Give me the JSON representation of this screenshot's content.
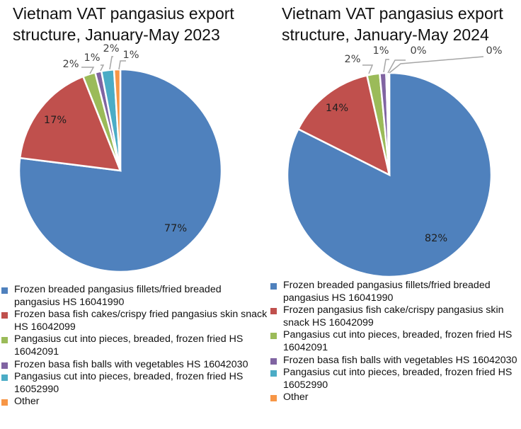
{
  "chart_data": [
    {
      "type": "pie",
      "title": "Vietnam VAT pangasius export structure, January-May 2023",
      "title_lines": [
        "Vietnam VAT pangasius export",
        "structure, January-May 2023"
      ],
      "categories": [
        "Frozen breaded pangasius fillets/fried breaded pangasius HS 16041990",
        "Frozen basa fish cakes/crispy fried pangasius skin snack HS 16042099",
        "Pangasius cut into pieces, breaded, frozen fried HS 16042091",
        "Frozen basa fish balls with vegetables HS 16042030",
        "Pangasius cut into pieces, breaded, frozen fried HS 16052990",
        "Other"
      ],
      "values": [
        77,
        17,
        2,
        1,
        2,
        1
      ],
      "data_labels": [
        "77%",
        "17%",
        "2%",
        "1%",
        "2%",
        "1%"
      ],
      "colors": [
        "#4f81bd",
        "#c0504d",
        "#9bbb59",
        "#8064a2",
        "#4bacc6",
        "#f79646"
      ],
      "legend_position": "bottom"
    },
    {
      "type": "pie",
      "title": "Vietnam VAT pangasius export structure, January-May 2024",
      "title_lines": [
        "Vietnam VAT pangasius export",
        "structure, January-May 2024"
      ],
      "categories": [
        "Frozen breaded pangasius fillets/fried breaded pangasius HS 16041990",
        "Frozen pangasius fish cake/crispy pangasius skin snack HS 16042099",
        "Pangasius cut into pieces, breaded, frozen fried HS 16042091",
        "Frozen basa fish balls with vegetables HS 16042030",
        "Pangasius cut into pieces, breaded, frozen fried HS 16052990",
        "Other"
      ],
      "values": [
        82,
        14,
        2,
        1,
        0.3,
        0.2
      ],
      "data_labels": [
        "82%",
        "14%",
        "2%",
        "1%",
        "0%",
        "0%"
      ],
      "colors": [
        "#4f81bd",
        "#c0504d",
        "#9bbb59",
        "#8064a2",
        "#4bacc6",
        "#f79646"
      ],
      "legend_position": "bottom"
    }
  ]
}
